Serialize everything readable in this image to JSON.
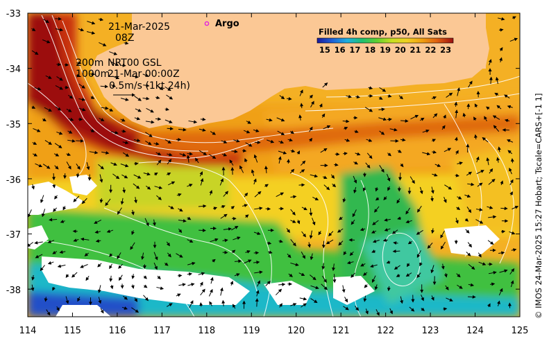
{
  "map": {
    "date_line1": "21-Mar-2025",
    "date_line2": "08Z",
    "argo_label": "Argo",
    "depth_line1": "200m",
    "depth_line2": "1000m",
    "model_line1": "NRT00 GSL",
    "model_line2": "21-Mar 00:00Z",
    "velocity_scale": "0.5m/s (1kt 24h)",
    "colorbar_title": "Filled 4h comp, p50, All Sats",
    "colorbar_ticks": [
      "15",
      "16",
      "17",
      "18",
      "19",
      "20",
      "21",
      "22",
      "23"
    ],
    "colorbar_range": [
      14.5,
      23.5
    ],
    "side_credit": "© IMOS 24-Mar-2025 15:27 Hobart; Tscale=CARS+[-1 1]",
    "lon_ticks": [
      "114",
      "115",
      "116",
      "117",
      "118",
      "119",
      "120",
      "121",
      "122",
      "123",
      "124",
      "125"
    ],
    "lat_ticks": [
      "-33",
      "-34",
      "-35",
      "-36",
      "-37",
      "-38"
    ],
    "lon_range": [
      114,
      125
    ],
    "lat_range": [
      -38.5,
      -33
    ],
    "colors": {
      "land": "#fbc895",
      "cloud": "#ffffff",
      "argo_marker": "#e020e0",
      "contour": "#ffffff",
      "arrow": "#000000"
    }
  }
}
